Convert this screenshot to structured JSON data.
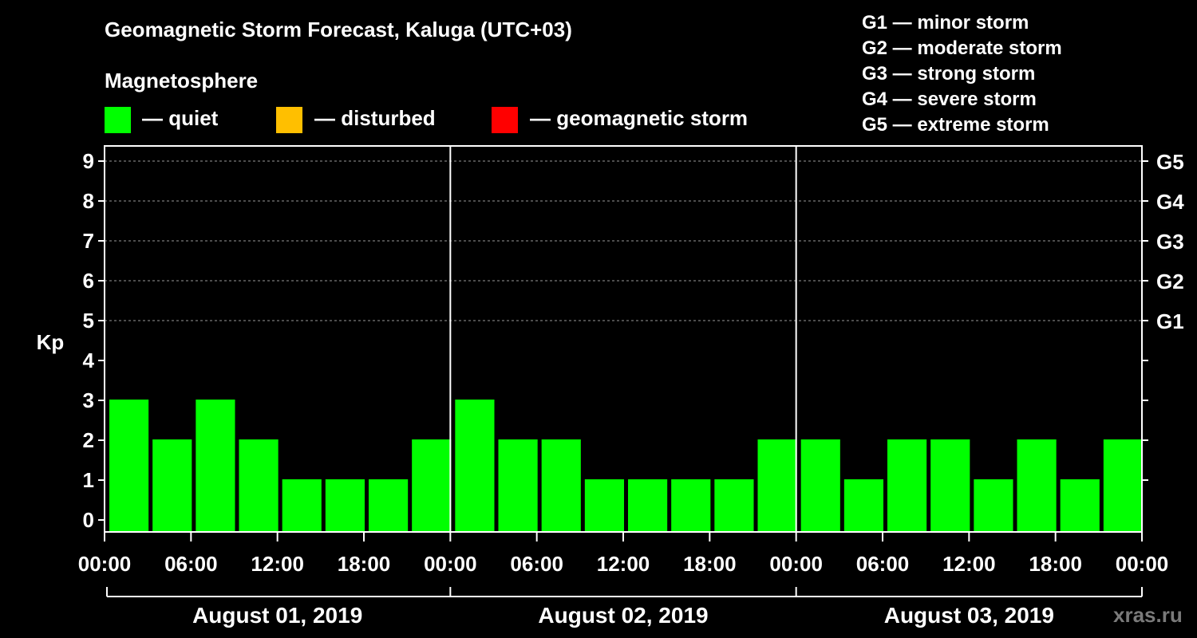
{
  "header": {
    "title": "Geomagnetic Storm Forecast, Kaluga (UTC+03)",
    "subtitle": "Magnetosphere"
  },
  "legend": {
    "items": [
      {
        "label": "— quiet",
        "color": "#00ff00"
      },
      {
        "label": "— disturbed",
        "color": "#ffbf00"
      },
      {
        "label": "— geomagnetic storm",
        "color": "#ff0000"
      }
    ]
  },
  "storm_scale": [
    "G1 — minor storm",
    "G2 — moderate storm",
    "G3 — strong storm",
    "G4 — severe storm",
    "G5 — extreme storm"
  ],
  "watermark": "xras.ru",
  "chart_data": {
    "type": "bar",
    "ylabel": "Kp",
    "ylim": [
      0,
      9
    ],
    "yticks": [
      "0",
      "1",
      "2",
      "3",
      "4",
      "5",
      "6",
      "7",
      "8",
      "9"
    ],
    "right_ticks": [
      {
        "kp": 5,
        "label": "G1"
      },
      {
        "kp": 6,
        "label": "G2"
      },
      {
        "kp": 7,
        "label": "G3"
      },
      {
        "kp": 8,
        "label": "G4"
      },
      {
        "kp": 9,
        "label": "G5"
      }
    ],
    "xtick_labels": [
      "00:00",
      "06:00",
      "12:00",
      "18:00",
      "00:00",
      "06:00",
      "12:00",
      "18:00",
      "00:00",
      "06:00",
      "12:00",
      "18:00",
      "00:00"
    ],
    "days": [
      "August 01, 2019",
      "August 02, 2019",
      "August 03, 2019"
    ],
    "interval_hours": 3,
    "series": [
      {
        "name": "Kp",
        "values": [
          3,
          2,
          3,
          2,
          1,
          1,
          1,
          2,
          3,
          2,
          2,
          1,
          1,
          1,
          1,
          2,
          2,
          1,
          2,
          2,
          1,
          2,
          1,
          2
        ]
      }
    ],
    "bar_color": "#00ff00",
    "grid": "dashed horizontal"
  }
}
